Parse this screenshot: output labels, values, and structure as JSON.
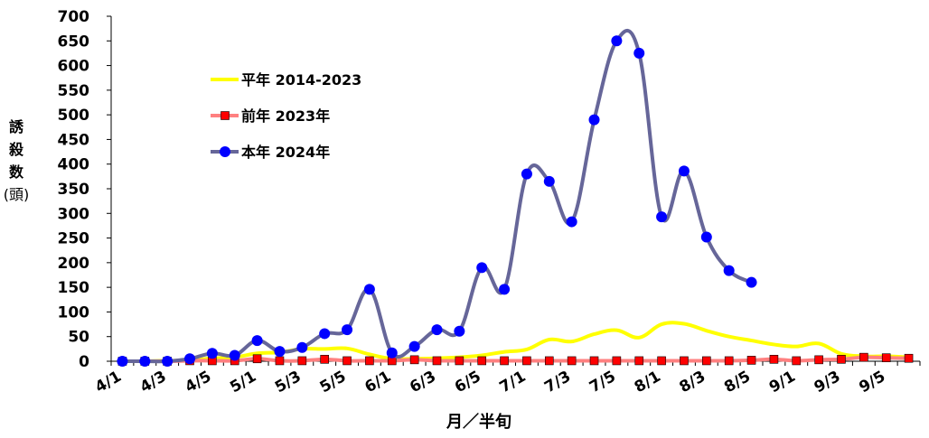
{
  "chart_data": {
    "type": "line",
    "xlabel": "月／半旬",
    "ylabel": {
      "main": [
        "誘",
        "殺",
        "数"
      ],
      "unit": [
        "(頭)"
      ]
    },
    "ylim": [
      0,
      700
    ],
    "yticks": [
      0,
      50,
      100,
      150,
      200,
      250,
      300,
      350,
      400,
      450,
      500,
      550,
      600,
      650,
      700
    ],
    "categories": [
      "4/1",
      "4/2",
      "4/3",
      "4/4",
      "4/5",
      "4/6",
      "5/1",
      "5/2",
      "5/3",
      "5/4",
      "5/5",
      "5/6",
      "6/1",
      "6/2",
      "6/3",
      "6/4",
      "6/5",
      "6/6",
      "7/1",
      "7/2",
      "7/3",
      "7/4",
      "7/5",
      "7/6",
      "8/1",
      "8/2",
      "8/3",
      "8/4",
      "8/5",
      "8/6",
      "9/1",
      "9/2",
      "9/3",
      "9/4",
      "9/5",
      "9/6"
    ],
    "tick_labels": [
      "4/1",
      "4/3",
      "4/5",
      "5/1",
      "5/3",
      "5/5",
      "6/1",
      "6/3",
      "6/5",
      "7/1",
      "7/3",
      "7/5",
      "8/1",
      "8/3",
      "8/5",
      "9/1",
      "9/3",
      "9/5"
    ],
    "grid": false,
    "legend_position": "upper-left",
    "series": [
      {
        "name": "平年 2014-2023",
        "color": "#ffff00",
        "marker": "none",
        "values": [
          0,
          0,
          1,
          2,
          6,
          8,
          16,
          18,
          25,
          25,
          26,
          14,
          5,
          5,
          6,
          8,
          12,
          19,
          24,
          44,
          40,
          55,
          63,
          48,
          75,
          76,
          62,
          50,
          42,
          34,
          30,
          36,
          15,
          10,
          10,
          8
        ]
      },
      {
        "name": "前年 2023年",
        "color": "#ff8080",
        "marker": "square",
        "marker_color": "#ff0000",
        "values": [
          0,
          0,
          0,
          1,
          1,
          1,
          5,
          1,
          1,
          4,
          1,
          1,
          1,
          3,
          1,
          1,
          1,
          1,
          1,
          1,
          1,
          1,
          1,
          1,
          1,
          1,
          1,
          1,
          2,
          4,
          1,
          3,
          4,
          8,
          7,
          6
        ]
      },
      {
        "name": "本年 2024年",
        "color": "#666699",
        "marker": "circle",
        "marker_color": "#0000ff",
        "values": [
          0,
          0,
          0,
          5,
          16,
          12,
          42,
          20,
          28,
          56,
          64,
          146,
          17,
          30,
          64,
          61,
          190,
          146,
          380,
          365,
          283,
          490,
          650,
          625,
          293,
          386,
          252,
          184,
          160,
          null,
          null,
          null,
          null,
          null,
          null,
          null
        ]
      }
    ]
  }
}
